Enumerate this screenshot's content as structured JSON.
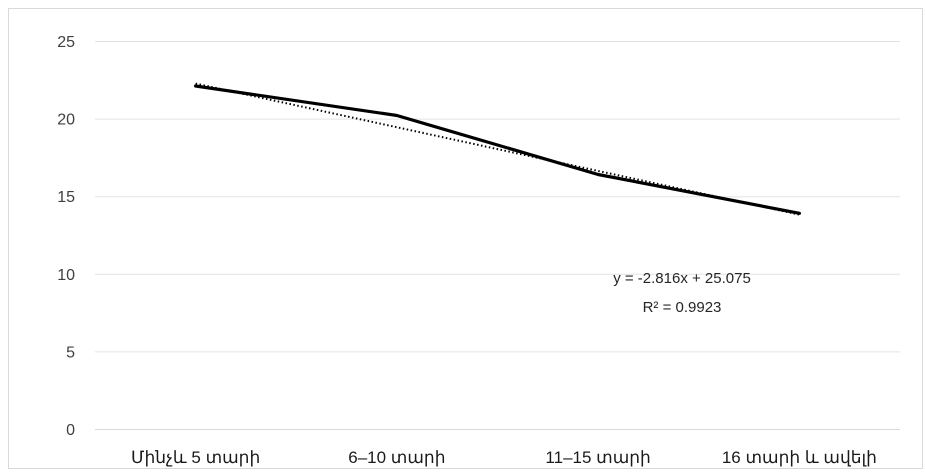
{
  "chart_data": {
    "type": "line",
    "categories": [
      "Մինչև 5 տարի",
      "6–10 տարի",
      "11–15 տարի",
      "16 տարի և ավելի"
    ],
    "series": [
      {
        "values": [
          22.1,
          20.2,
          16.4,
          13.9
        ],
        "color": "#000000"
      }
    ],
    "trendline": {
      "type": "linear",
      "style": "dotted",
      "slope": -2.816,
      "intercept": 25.075,
      "equation": "y = -2.816x + 25.075",
      "r_squared": "R² = 0.9923"
    },
    "yticks": [
      "0",
      "5",
      "10",
      "15",
      "20",
      "25"
    ],
    "ylim": [
      0,
      25
    ],
    "grid": true,
    "legend": "none"
  }
}
